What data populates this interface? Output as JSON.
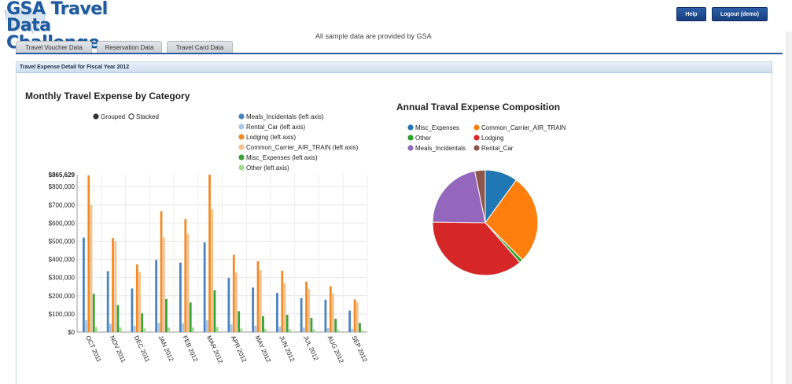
{
  "header": {
    "logo_line1": "GSA Travel",
    "logo_line2": "Data Challenge",
    "help_label": "Help",
    "logout_label": "Logout (demo)",
    "notice": "All sample data are provided by GSA"
  },
  "tabs": [
    {
      "label": "Travel Voucher Data"
    },
    {
      "label": "Reservation Data"
    },
    {
      "label": "Travel Card Data"
    }
  ],
  "panel": {
    "title": "Travel Expense Detail for Fiscal Year 2012"
  },
  "colors": {
    "Meals_Incidentals": "#4a83c0",
    "Rental_Car": "#a9c4e4",
    "Lodging": "#f28a25",
    "Common_Carrier_AIR_TRAIN": "#f8c089",
    "Misc_Expenses": "#3aa23a",
    "Other": "#9fdc8e",
    "pie_Misc_Expenses": "#1f77b4",
    "pie_Common_Carrier": "#ff7f0e",
    "pie_Other": "#2ca02c",
    "pie_Lodging": "#d62728",
    "pie_Meals": "#9467bd",
    "pie_Rental": "#8c564b"
  },
  "bar_legend": {
    "mode_grouped": "Grouped",
    "mode_stacked": "Stacked",
    "items": [
      "Meals_Incidentals (left axis)",
      "Rental_Car (left axis)",
      "Lodging (left axis)",
      "Common_Carrier_AIR_TRAIN (left axis)",
      "Misc_Expenses (left axis)",
      "Other (left axis)"
    ]
  },
  "pie_legend": {
    "items": [
      "Misc_Expenses",
      "Common_Carrier_AIR_TRAIN",
      "Other",
      "Lodging",
      "Meals_Incidentals",
      "Rental_Car"
    ]
  },
  "chart_data": [
    {
      "type": "bar",
      "title": "Monthly Travel Expense by Category",
      "categories": [
        "OCT 2011",
        "NOV 2011",
        "DEC 2011",
        "JAN 2012",
        "FEB 2012",
        "MAR 2012",
        "APR 2012",
        "MAY 2012",
        "JUN 2012",
        "JUL 2012",
        "AUG 2012",
        "SEP 2012"
      ],
      "yticks": [
        "$0",
        "$100,000",
        "$200,000",
        "$300,000",
        "$400,000",
        "$500,000",
        "$600,000",
        "$700,000",
        "$800,000"
      ],
      "ymax_label": "$865,629",
      "ylim": [
        0,
        865629
      ],
      "mode": "grouped",
      "grid": true,
      "series": [
        {
          "name": "Meals_Incidentals (left axis)",
          "values": [
            520000,
            335000,
            240000,
            397000,
            382000,
            493000,
            298000,
            245000,
            215000,
            187000,
            178000,
            118000
          ]
        },
        {
          "name": "Rental_Car (left axis)",
          "values": [
            65000,
            45000,
            35000,
            50000,
            48000,
            65000,
            42000,
            35000,
            30000,
            25000,
            22000,
            18000
          ]
        },
        {
          "name": "Lodging (left axis)",
          "values": [
            862000,
            517000,
            372000,
            665000,
            622000,
            865629,
            425000,
            390000,
            337000,
            277000,
            252000,
            180000
          ]
        },
        {
          "name": "Common_Carrier_AIR_TRAIN (left axis)",
          "values": [
            697000,
            500000,
            330000,
            520000,
            540000,
            675000,
            328000,
            340000,
            268000,
            238000,
            212000,
            165000
          ]
        },
        {
          "name": "Misc_Expenses (left axis)",
          "values": [
            210000,
            148000,
            103000,
            182000,
            163000,
            230000,
            115000,
            88000,
            95000,
            78000,
            73000,
            50000
          ]
        },
        {
          "name": "Other (left axis)",
          "values": [
            28000,
            25000,
            20000,
            25000,
            25000,
            28000,
            20000,
            18000,
            15000,
            15000,
            12000,
            10000
          ]
        }
      ]
    },
    {
      "type": "pie",
      "title": "Annual Traval Expense Composition",
      "slices": [
        {
          "label": "Misc_Expenses",
          "value": 10.0
        },
        {
          "label": "Common_Carrier_AIR_TRAIN",
          "value": 27.5
        },
        {
          "label": "Other",
          "value": 1.1
        },
        {
          "label": "Lodging",
          "value": 36.6
        },
        {
          "label": "Meals_Incidentals",
          "value": 21.6
        },
        {
          "label": "Rental_Car",
          "value": 3.2
        }
      ]
    }
  ]
}
